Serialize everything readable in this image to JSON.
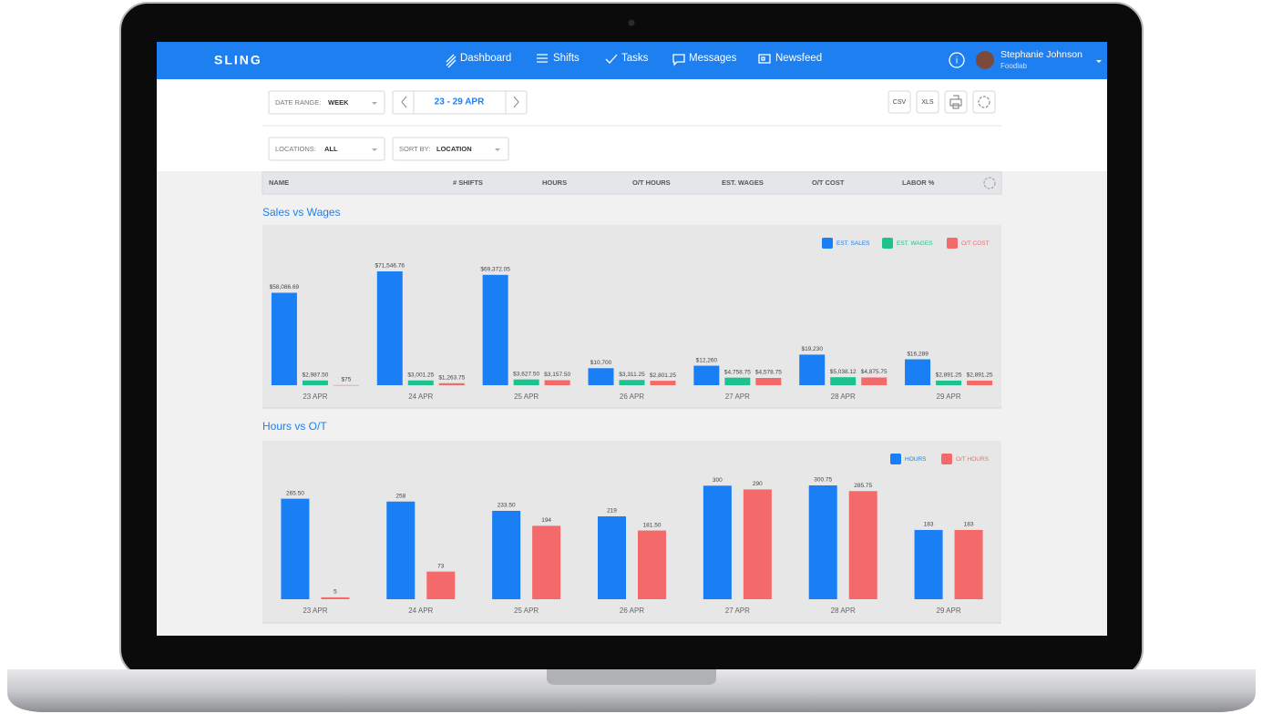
{
  "header": {
    "brand": "SLING",
    "nav": [
      "Dashboard",
      "Shifts",
      "Tasks",
      "Messages",
      "Newsfeed"
    ],
    "user_name": "Stephanie Johnson",
    "user_org": "Foodlab"
  },
  "toolbar": {
    "date_range_label": "DATE RANGE:",
    "date_range_value": "WEEK",
    "date": "23 - 29 APR",
    "buttons": [
      "CSV",
      "XLS"
    ],
    "locations_label": "LOCATIONS:",
    "locations_value": "ALL",
    "sort_label": "SORT BY:",
    "sort_value": "LOCATION"
  },
  "table_header": [
    "NAME",
    "# SHIFTS",
    "HOURS",
    "O/T HOURS",
    "EST. WAGES",
    "O/T COST",
    "LABOR %"
  ],
  "chart_data": [
    {
      "type": "bar",
      "title": "Sales vs Wages",
      "categories": [
        "23 APR",
        "24 APR",
        "25 APR",
        "26 APR",
        "27 APR",
        "28 APR",
        "29 APR"
      ],
      "series": [
        {
          "name": "EST. SALES",
          "color": "#1a7ef5",
          "values": [
            58086.69,
            71546.76,
            69372.05,
            10700,
            12260,
            19230,
            16289
          ],
          "value_labels": [
            "$58,086.69",
            "$71,546.76",
            "$69,372.05",
            "$10,700",
            "$12,260",
            "$19,230",
            "$16,289"
          ]
        },
        {
          "name": "EST. WAGES",
          "color": "#1dc28f",
          "values": [
            2987.5,
            3001.25,
            3627.5,
            3311.25,
            4758.75,
            5038.12,
            2891.25
          ],
          "value_labels": [
            "$2,987.50",
            "$3,001.25",
            "$3,627.50",
            "$3,311.25",
            "$4,758.75",
            "$5,038.12",
            "$2,891.25"
          ]
        },
        {
          "name": "O/T COST",
          "color": "#f46a6a",
          "values": [
            75,
            1263.75,
            3157.5,
            2801.25,
            4578.75,
            4875.75,
            2891.25
          ],
          "value_labels": [
            "$75",
            "$1,263.75",
            "$3,157.50",
            "$2,801.25",
            "$4,578.75",
            "$4,875.75",
            "$2,891.25"
          ]
        }
      ]
    },
    {
      "type": "bar",
      "title": "Hours vs O/T",
      "categories": [
        "23 APR",
        "24 APR",
        "25 APR",
        "26 APR",
        "27 APR",
        "28 APR",
        "29 APR"
      ],
      "series": [
        {
          "name": "HOURS",
          "color": "#1a7ef5",
          "values": [
            265.5,
            258,
            233.5,
            219,
            300,
            300.75,
            183
          ],
          "value_labels": [
            "265.50",
            "258",
            "233.50",
            "219",
            "300",
            "300.75",
            "183"
          ]
        },
        {
          "name": "O/T HOURS",
          "color": "#f46a6a",
          "values": [
            5,
            73,
            194,
            181.5,
            290,
            285.75,
            183
          ],
          "value_labels": [
            "5",
            "73",
            "194",
            "181.50",
            "290",
            "285.75",
            "183"
          ]
        }
      ]
    }
  ]
}
